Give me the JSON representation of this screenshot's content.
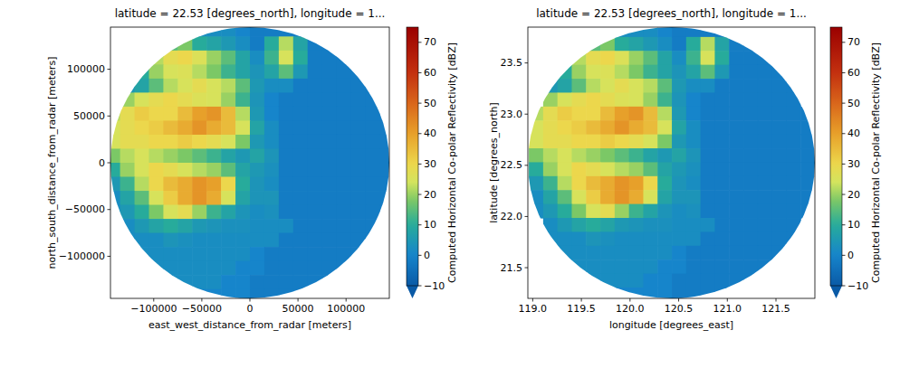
{
  "chart_data": [
    {
      "type": "heatmap",
      "title": "latitude = 22.53 [degrees_north], longitude = 1...",
      "x_label": "east_west_distance_from_radar [meters]",
      "y_label": "north_south_distance_from_radar [meters]",
      "xlim": [
        -145000,
        145000
      ],
      "ylim": [
        -145000,
        145000
      ],
      "xticks": [
        {
          "value": -100000,
          "label": "−100000"
        },
        {
          "value": -50000,
          "label": "−50000"
        },
        0,
        50000,
        100000
      ],
      "yticks": [
        {
          "value": -100000,
          "label": "−100000"
        },
        {
          "value": -50000,
          "label": "−50000"
        },
        0,
        50000,
        100000
      ],
      "x_edges": [
        -150000,
        -135000,
        -120000,
        -105000,
        -90000,
        -75000,
        -60000,
        -45000,
        -30000,
        -15000,
        0,
        15000,
        30000,
        45000,
        60000,
        75000,
        90000,
        105000,
        120000,
        135000,
        150000
      ],
      "y_edges": [
        150000,
        135000,
        120000,
        105000,
        90000,
        75000,
        60000,
        45000,
        30000,
        15000,
        0,
        -15000,
        -30000,
        -45000,
        -60000,
        -75000,
        -90000,
        -105000,
        -120000,
        -135000,
        -150000
      ],
      "cells": [
        [
          null,
          null,
          null,
          null,
          null,
          null,
          2,
          2,
          2,
          0,
          -2,
          -2,
          -2,
          -2,
          null,
          null,
          null,
          null,
          null,
          null
        ],
        [
          null,
          null,
          null,
          null,
          15,
          18,
          10,
          8,
          5,
          2,
          -2,
          10,
          22,
          8,
          -2,
          -2,
          null,
          null,
          null,
          null
        ],
        [
          null,
          null,
          null,
          22,
          28,
          30,
          26,
          20,
          15,
          8,
          2,
          12,
          25,
          10,
          -2,
          -2,
          -2,
          null,
          null,
          null
        ],
        [
          null,
          null,
          10,
          20,
          25,
          26,
          22,
          18,
          12,
          8,
          4,
          8,
          15,
          5,
          -2,
          -2,
          -2,
          -2,
          null,
          null
        ],
        [
          null,
          5,
          8,
          15,
          22,
          25,
          28,
          25,
          22,
          15,
          5,
          2,
          2,
          -2,
          -2,
          -2,
          -2,
          -2,
          -2,
          null
        ],
        [
          null,
          20,
          25,
          28,
          30,
          28,
          26,
          25,
          20,
          12,
          4,
          0,
          -2,
          -2,
          -2,
          -2,
          -2,
          -2,
          -2,
          null
        ],
        [
          22,
          28,
          32,
          30,
          30,
          35,
          40,
          42,
          35,
          22,
          5,
          0,
          -2,
          -2,
          -2,
          -2,
          -2,
          -2,
          -2,
          -2
        ],
        [
          25,
          28,
          30,
          32,
          35,
          38,
          42,
          38,
          35,
          25,
          8,
          2,
          -2,
          -2,
          -2,
          -2,
          -2,
          -2,
          -2,
          -2
        ],
        [
          25,
          28,
          28,
          30,
          30,
          32,
          30,
          28,
          25,
          18,
          5,
          2,
          -2,
          -2,
          -2,
          -2,
          -2,
          -2,
          -2,
          -2
        ],
        [
          18,
          22,
          25,
          22,
          20,
          18,
          15,
          12,
          8,
          5,
          8,
          4,
          -2,
          -2,
          -2,
          -2,
          -2,
          -2,
          -2,
          -2
        ],
        [
          10,
          20,
          25,
          30,
          28,
          25,
          22,
          20,
          15,
          8,
          5,
          3,
          -2,
          -2,
          -2,
          -2,
          -2,
          -2,
          -2,
          -2
        ],
        [
          5,
          12,
          22,
          30,
          35,
          38,
          42,
          40,
          30,
          10,
          4,
          2,
          -2,
          -2,
          -2,
          -2,
          -2,
          -2,
          -2,
          -2
        ],
        [
          2,
          8,
          15,
          25,
          32,
          38,
          42,
          38,
          25,
          8,
          4,
          4,
          -2,
          -2,
          -2,
          -2,
          -2,
          -2,
          -2,
          -2
        ],
        [
          2,
          5,
          10,
          18,
          25,
          28,
          20,
          12,
          8,
          4,
          2,
          3,
          -2,
          -2,
          -2,
          -2,
          -2,
          -2,
          -2,
          -2
        ],
        [
          null,
          2,
          5,
          8,
          10,
          8,
          5,
          4,
          3,
          3,
          2,
          2,
          2,
          -2,
          -2,
          -2,
          -2,
          -2,
          -2,
          null
        ],
        [
          null,
          2,
          2,
          2,
          4,
          3,
          2,
          2,
          2,
          2,
          2,
          2,
          -2,
          -2,
          -2,
          -2,
          -2,
          -2,
          -2,
          null
        ],
        [
          null,
          null,
          2,
          2,
          2,
          2,
          2,
          2,
          2,
          2,
          0,
          -2,
          -2,
          -2,
          -2,
          -2,
          -2,
          -2,
          null,
          null
        ],
        [
          null,
          null,
          null,
          2,
          2,
          2,
          2,
          2,
          2,
          0,
          0,
          -2,
          -2,
          -2,
          -2,
          -2,
          -2,
          null,
          null,
          null
        ],
        [
          null,
          null,
          null,
          null,
          2,
          2,
          2,
          2,
          0,
          0,
          -2,
          -2,
          -2,
          -2,
          -2,
          -2,
          null,
          null,
          null,
          null
        ],
        [
          null,
          null,
          null,
          null,
          null,
          null,
          0,
          0,
          0,
          0,
          -2,
          -2,
          -2,
          -2,
          null,
          null,
          null,
          null,
          null,
          null
        ]
      ],
      "colorbar": {
        "label": "Computed Horizontal Co-polar Reflectivity [dBZ]",
        "range": [
          -10,
          75
        ],
        "ticks": [
          {
            "value": -10,
            "label": "−10"
          },
          0,
          10,
          20,
          30,
          40,
          50,
          60,
          70
        ]
      }
    },
    {
      "type": "heatmap",
      "title": "latitude = 22.53 [degrees_north], longitude = 1...",
      "x_label": "longitude [degrees_east]",
      "y_label": "latitude [degrees_north]",
      "xlim": [
        118.95,
        121.9
      ],
      "ylim": [
        21.2,
        23.85
      ],
      "xticks": [
        {
          "value": 119,
          "label": "119.0"
        },
        {
          "value": 119.5,
          "label": "119.5"
        },
        {
          "value": 120,
          "label": "120.0"
        },
        {
          "value": 120.5,
          "label": "120.5"
        },
        {
          "value": 121,
          "label": "121.0"
        },
        {
          "value": 121.5,
          "label": "121.5"
        }
      ],
      "yticks": [
        {
          "value": 21.5,
          "label": "21.5"
        },
        {
          "value": 22,
          "label": "22.0"
        },
        {
          "value": 22.5,
          "label": "22.5"
        },
        {
          "value": 23,
          "label": "23.0"
        },
        {
          "value": 23.5,
          "label": "23.5"
        }
      ],
      "x_edges": [
        118.96,
        119.107,
        119.254,
        119.401,
        119.548,
        119.695,
        119.842,
        119.989,
        120.136,
        120.283,
        120.43,
        120.577,
        120.724,
        120.871,
        121.018,
        121.165,
        121.312,
        121.459,
        121.606,
        121.753,
        121.9
      ],
      "y_edges": [
        23.89,
        23.754,
        23.618,
        23.482,
        23.346,
        23.21,
        23.074,
        22.938,
        22.802,
        22.666,
        22.53,
        22.394,
        22.258,
        22.122,
        21.986,
        21.85,
        21.714,
        21.578,
        21.442,
        21.306,
        21.17
      ],
      "cells": [
        [
          null,
          null,
          null,
          null,
          null,
          null,
          2,
          2,
          2,
          0,
          -2,
          -2,
          -2,
          -2,
          null,
          null,
          null,
          null,
          null,
          null
        ],
        [
          null,
          null,
          null,
          null,
          15,
          18,
          10,
          8,
          5,
          2,
          -2,
          10,
          22,
          8,
          -2,
          -2,
          null,
          null,
          null,
          null
        ],
        [
          null,
          null,
          null,
          22,
          28,
          30,
          26,
          20,
          15,
          8,
          2,
          12,
          25,
          10,
          -2,
          -2,
          -2,
          null,
          null,
          null
        ],
        [
          null,
          null,
          10,
          20,
          25,
          26,
          22,
          18,
          12,
          8,
          4,
          8,
          15,
          5,
          -2,
          -2,
          -2,
          -2,
          null,
          null
        ],
        [
          null,
          5,
          8,
          15,
          22,
          25,
          28,
          25,
          22,
          15,
          5,
          2,
          2,
          -2,
          -2,
          -2,
          -2,
          -2,
          -2,
          null
        ],
        [
          null,
          20,
          25,
          28,
          30,
          28,
          26,
          25,
          20,
          12,
          4,
          0,
          -2,
          -2,
          -2,
          -2,
          -2,
          -2,
          -2,
          null
        ],
        [
          22,
          28,
          32,
          30,
          30,
          35,
          40,
          42,
          35,
          22,
          5,
          0,
          -2,
          -2,
          -2,
          -2,
          -2,
          -2,
          -2,
          -2
        ],
        [
          25,
          28,
          30,
          32,
          35,
          38,
          42,
          38,
          35,
          25,
          8,
          2,
          -2,
          -2,
          -2,
          -2,
          -2,
          -2,
          -2,
          -2
        ],
        [
          25,
          28,
          28,
          30,
          30,
          32,
          30,
          28,
          25,
          18,
          5,
          2,
          -2,
          -2,
          -2,
          -2,
          -2,
          -2,
          -2,
          -2
        ],
        [
          18,
          22,
          25,
          22,
          20,
          18,
          15,
          12,
          8,
          5,
          8,
          4,
          -2,
          -2,
          -2,
          -2,
          -2,
          -2,
          -2,
          -2
        ],
        [
          10,
          20,
          25,
          30,
          28,
          25,
          22,
          20,
          15,
          8,
          5,
          3,
          -2,
          -2,
          -2,
          -2,
          -2,
          -2,
          -2,
          -2
        ],
        [
          5,
          12,
          22,
          30,
          35,
          38,
          42,
          40,
          30,
          10,
          4,
          2,
          -2,
          -2,
          -2,
          -2,
          -2,
          -2,
          -2,
          -2
        ],
        [
          2,
          8,
          15,
          25,
          32,
          38,
          42,
          38,
          25,
          8,
          4,
          4,
          -2,
          -2,
          -2,
          -2,
          -2,
          -2,
          -2,
          -2
        ],
        [
          2,
          5,
          10,
          18,
          25,
          28,
          20,
          12,
          8,
          4,
          2,
          3,
          -2,
          -2,
          -2,
          -2,
          -2,
          -2,
          -2,
          -2
        ],
        [
          null,
          2,
          5,
          8,
          10,
          8,
          5,
          4,
          3,
          3,
          2,
          2,
          2,
          -2,
          -2,
          -2,
          -2,
          -2,
          -2,
          null
        ],
        [
          null,
          2,
          2,
          2,
          4,
          3,
          2,
          2,
          2,
          2,
          2,
          2,
          -2,
          -2,
          -2,
          -2,
          -2,
          -2,
          -2,
          null
        ],
        [
          null,
          null,
          2,
          2,
          2,
          2,
          2,
          2,
          2,
          2,
          0,
          -2,
          -2,
          -2,
          -2,
          -2,
          -2,
          -2,
          null,
          null
        ],
        [
          null,
          null,
          null,
          2,
          2,
          2,
          2,
          2,
          2,
          0,
          0,
          -2,
          -2,
          -2,
          -2,
          -2,
          -2,
          null,
          null,
          null
        ],
        [
          null,
          null,
          null,
          null,
          2,
          2,
          2,
          2,
          0,
          0,
          -2,
          -2,
          -2,
          -2,
          -2,
          -2,
          null,
          null,
          null,
          null
        ],
        [
          null,
          null,
          null,
          null,
          null,
          null,
          0,
          0,
          0,
          0,
          -2,
          -2,
          -2,
          -2,
          null,
          null,
          null,
          null,
          null,
          null
        ]
      ],
      "colorbar": {
        "label": "Computed Horizontal Co-polar Reflectivity [dBZ]",
        "range": [
          -10,
          75
        ],
        "ticks": [
          {
            "value": -10,
            "label": "−10"
          },
          0,
          10,
          20,
          30,
          40,
          50,
          60,
          70
        ]
      }
    }
  ]
}
